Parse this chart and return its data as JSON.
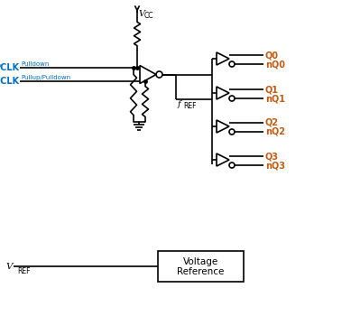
{
  "bg_color": "#ffffff",
  "line_color": "#000000",
  "pclk_color": "#0070c0",
  "output_color": "#c55a11",
  "annotation_color": "#0070c0",
  "vcc_label": "V",
  "vcc_sub": "CC",
  "vref_label": "V",
  "vref_sub": "REF",
  "freq_label": "f",
  "freq_sub": "REF",
  "pclk_text": "PCLK",
  "npclk_text": "nPCLK",
  "pulldown_text": "Pulldown",
  "pulluppulldown_text": "Pullup/Pulldown",
  "q_labels": [
    "Q0",
    "Q1",
    "Q2",
    "Q3"
  ],
  "nq_labels": [
    "nQ0",
    "nQ1",
    "nQ2",
    "nQ3"
  ],
  "volt_ref_line1": "Voltage",
  "volt_ref_line2": "Reference"
}
